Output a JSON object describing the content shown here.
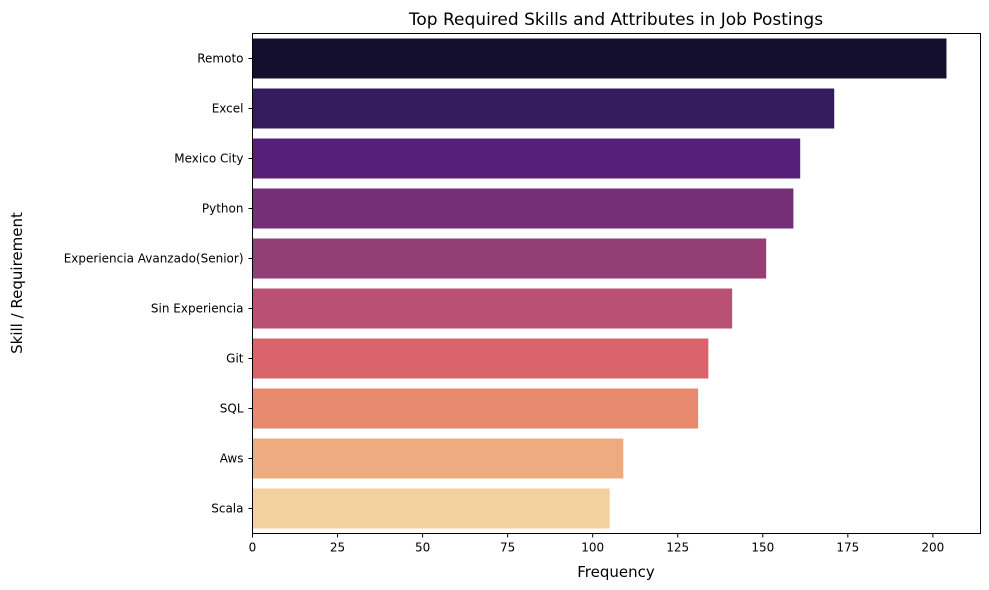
{
  "chart_data": {
    "type": "bar",
    "orientation": "horizontal",
    "title": "Top Required Skills and Attributes in Job Postings",
    "xlabel": "Frequency",
    "ylabel": "Skill / Requirement",
    "xlim": [
      0,
      214
    ],
    "xticks": [
      0,
      25,
      50,
      75,
      100,
      125,
      150,
      175,
      200
    ],
    "grid": false,
    "categories": [
      "Remoto",
      "Excel",
      "Mexico City",
      "Python",
      "Experiencia Avanzado(Senior)",
      "Sin Experiencia",
      "Git",
      "SQL",
      "Aws",
      "Scala"
    ],
    "values": [
      204,
      171,
      161,
      159,
      151,
      141,
      134,
      131,
      109,
      105
    ],
    "colors": [
      "#140f2d",
      "#341b5e",
      "#56207a",
      "#742f76",
      "#933e74",
      "#ba5073",
      "#d9646c",
      "#e88a6e",
      "#efab80",
      "#f3d19e"
    ]
  }
}
